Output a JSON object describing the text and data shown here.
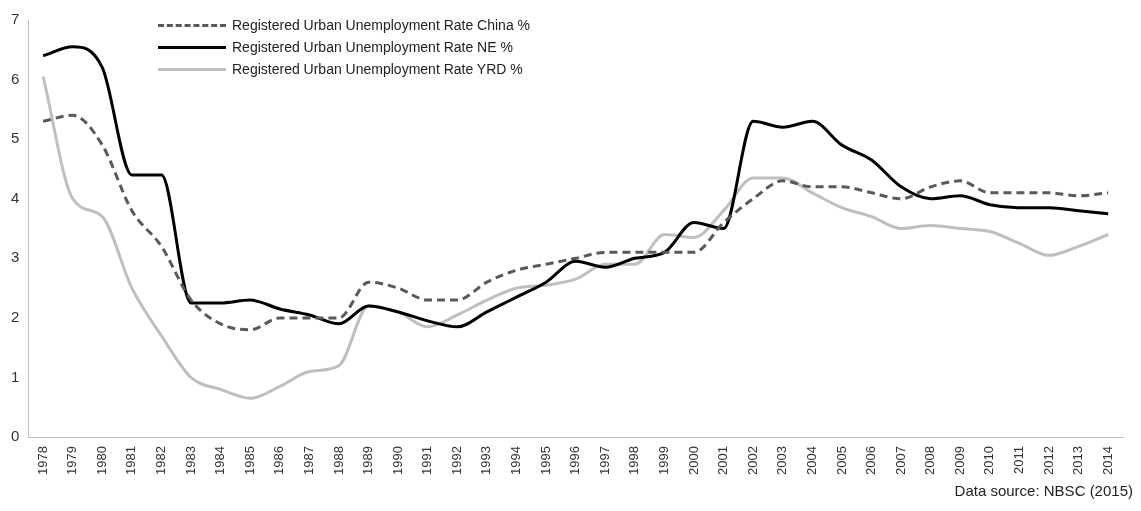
{
  "chart_data": {
    "type": "line",
    "categories": [
      "1978",
      "1979",
      "1980",
      "1981",
      "1982",
      "1983",
      "1984",
      "1985",
      "1986",
      "1987",
      "1988",
      "1989",
      "1990",
      "1991",
      "1992",
      "1993",
      "1994",
      "1995",
      "1996",
      "1997",
      "1998",
      "1999",
      "2000",
      "2001",
      "2002",
      "2003",
      "2004",
      "2005",
      "2006",
      "2007",
      "2008",
      "2009",
      "2010",
      "2011",
      "2012",
      "2013",
      "2014"
    ],
    "series": [
      {
        "name": "Registered Urban Unemployment Rate China %",
        "color": "#595959",
        "line_style": "dashed",
        "values": [
          5.3,
          5.4,
          4.9,
          3.8,
          3.2,
          2.3,
          1.9,
          1.8,
          2.0,
          2.0,
          2.0,
          2.6,
          2.5,
          2.3,
          2.3,
          2.6,
          2.8,
          2.9,
          3.0,
          3.1,
          3.1,
          3.1,
          3.1,
          3.6,
          4.0,
          4.3,
          4.2,
          4.2,
          4.1,
          4.0,
          4.2,
          4.3,
          4.1,
          4.1,
          4.1,
          4.05,
          4.1
        ]
      },
      {
        "name": "Registered Urban Unemployment Rate NE %",
        "color": "#000000",
        "line_style": "solid",
        "values": [
          6.4,
          6.55,
          6.2,
          4.4,
          4.4,
          2.25,
          2.25,
          2.3,
          2.15,
          2.05,
          1.9,
          2.2,
          2.1,
          1.95,
          1.85,
          2.1,
          2.35,
          2.6,
          2.95,
          2.85,
          3.0,
          3.1,
          3.6,
          3.5,
          5.3,
          5.2,
          5.3,
          4.9,
          4.65,
          4.2,
          4.0,
          4.05,
          3.9,
          3.85,
          3.85,
          3.8,
          3.75
        ]
      },
      {
        "name": "Registered Urban Unemployment Rate YRD %",
        "color": "#bfbfbf",
        "line_style": "solid",
        "values": [
          6.05,
          4.0,
          3.7,
          2.5,
          1.7,
          1.0,
          0.8,
          0.65,
          0.85,
          1.1,
          1.2,
          2.2,
          2.1,
          1.85,
          2.05,
          2.3,
          2.5,
          2.55,
          2.65,
          2.9,
          2.9,
          3.4,
          3.35,
          3.8,
          4.35,
          4.35,
          4.1,
          3.85,
          3.7,
          3.5,
          3.55,
          3.5,
          3.45,
          3.25,
          3.05,
          3.2,
          3.4
        ]
      }
    ],
    "ylim": [
      0,
      7
    ],
    "yticks": [
      0,
      1,
      2,
      3,
      4,
      5,
      6,
      7
    ],
    "grid": false,
    "legend": "top left",
    "marker": "none",
    "annotations": [
      "Data source: NBSC (2015)"
    ]
  }
}
